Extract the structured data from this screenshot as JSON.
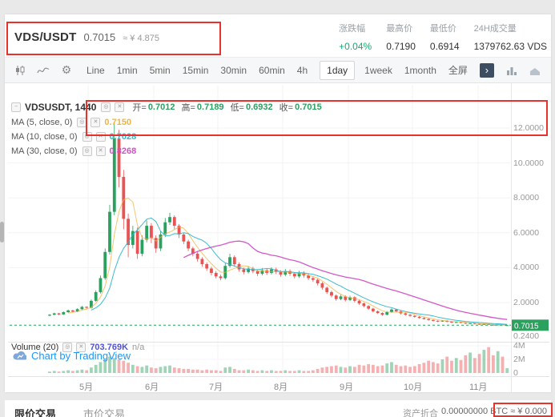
{
  "header": {
    "pair": "VDS/USDT",
    "price": "0.7015",
    "approx": "≈ ¥ 4.875",
    "stats": [
      {
        "label": "涨跌幅",
        "value": "+0.04%",
        "color": "#0fae6d"
      },
      {
        "label": "最高价",
        "value": "0.7190",
        "color": "#333333"
      },
      {
        "label": "最低价",
        "value": "0.6914",
        "color": "#333333"
      },
      {
        "label": "24H成交量",
        "value": "1379762.63 VDS",
        "color": "#333333"
      }
    ]
  },
  "toolbar": {
    "intervals": [
      "Line",
      "1min",
      "5min",
      "15min",
      "30min",
      "60min",
      "4h",
      "1day",
      "1week",
      "1month",
      "全屏"
    ],
    "active_interval": "1day"
  },
  "icons": {
    "collapse": "−",
    "toggle_a": "◎",
    "toggle_b": "✕",
    "gear": "⚙",
    "chevron": "›"
  },
  "legend": {
    "symbol": "VDSUSDT, 1440",
    "ohlc_color": "#2ba05f",
    "ohlc": [
      {
        "label": "开=",
        "value": "0.7012"
      },
      {
        "label": "高=",
        "value": "0.7189"
      },
      {
        "label": "低=",
        "value": "0.6932"
      },
      {
        "label": "收=",
        "value": "0.7015"
      }
    ],
    "ma": [
      {
        "label": "MA (5, close, 0)",
        "value": "0.7150",
        "color": "#f2b33d"
      },
      {
        "label": "MA (10, close, 0)",
        "value": "0.7028",
        "color": "#31b8cf"
      },
      {
        "label": "MA (30, close, 0)",
        "value": "0.8268",
        "color": "#d14fc6"
      }
    ]
  },
  "volume_legend": {
    "label": "Volume (20)",
    "value": "703.769K",
    "suffix": "n/a",
    "value_color": "#5353d6"
  },
  "watermark": "Chart by TradingView",
  "price_badge": {
    "text": "0.7015",
    "bg": "#2ba05f"
  },
  "axes": {
    "price_ticks": [
      "12.0000",
      "10.0000",
      "8.0000",
      "6.0000",
      "4.0000",
      "2.0000"
    ],
    "price_tick_values": [
      12,
      10,
      8,
      6,
      4,
      2
    ],
    "bottom_tick": "0.2400",
    "volume_ticks": [
      {
        "label": "4M",
        "value": 4
      },
      {
        "label": "2M",
        "value": 2
      },
      {
        "label": "0",
        "value": 0
      }
    ],
    "months": [
      "5月",
      "6月",
      "7月",
      "8月",
      "9月",
      "10月",
      "11月"
    ]
  },
  "bottom": {
    "tabs": [
      {
        "label": "限价交易",
        "active": true
      },
      {
        "label": "市价交易",
        "active": false
      }
    ],
    "right_label": "资产折合",
    "right_value": "0.00000000 BTC ≈ ¥ 0.000"
  },
  "chart_data": {
    "type": "candlestick",
    "symbol": "VDS/USDT",
    "interval": "1day",
    "up_color": "#2ba05f",
    "down_color": "#e95353",
    "ylim": [
      0,
      14.5
    ],
    "volume_ylim_m": [
      0,
      4
    ],
    "current_price": 0.7015,
    "x_labels": [
      "5月",
      "6月",
      "7月",
      "8月",
      "9月",
      "10月",
      "11月"
    ],
    "ma_periods": [
      5,
      10,
      30
    ],
    "candles": [
      [
        1.25,
        1.34,
        1.22,
        1.3
      ],
      [
        1.3,
        1.42,
        1.27,
        1.38
      ],
      [
        1.38,
        1.41,
        1.28,
        1.32
      ],
      [
        1.32,
        1.49,
        1.29,
        1.45
      ],
      [
        1.45,
        1.6,
        1.41,
        1.55
      ],
      [
        1.55,
        1.58,
        1.44,
        1.48
      ],
      [
        1.48,
        1.67,
        1.45,
        1.62
      ],
      [
        1.62,
        1.81,
        1.58,
        1.75
      ],
      [
        1.75,
        1.79,
        1.65,
        1.7
      ],
      [
        1.7,
        2.18,
        1.66,
        2.1
      ],
      [
        2.1,
        2.7,
        2.04,
        2.6
      ],
      [
        2.6,
        3.55,
        2.52,
        3.4
      ],
      [
        3.4,
        5.1,
        3.3,
        4.9
      ],
      [
        4.9,
        7.6,
        4.75,
        7.2
      ],
      [
        7.2,
        12.3,
        7.0,
        11.4
      ],
      [
        11.4,
        11.9,
        8.6,
        9.2
      ],
      [
        9.2,
        9.6,
        6.2,
        6.8
      ],
      [
        6.8,
        7.1,
        4.6,
        5.3
      ],
      [
        5.3,
        6.4,
        5.1,
        6.1
      ],
      [
        6.1,
        6.3,
        4.5,
        4.8
      ],
      [
        4.8,
        5.85,
        4.65,
        5.6
      ],
      [
        5.6,
        6.7,
        5.45,
        6.4
      ],
      [
        6.4,
        6.55,
        5.4,
        5.7
      ],
      [
        5.7,
        5.85,
        4.85,
        5.1
      ],
      [
        5.1,
        6.1,
        4.95,
        5.9
      ],
      [
        5.9,
        6.85,
        5.75,
        6.6
      ],
      [
        6.6,
        7.15,
        6.45,
        6.9
      ],
      [
        6.9,
        7.0,
        6.2,
        6.4
      ],
      [
        6.4,
        6.5,
        5.7,
        5.9
      ],
      [
        5.9,
        6.0,
        5.35,
        5.5
      ],
      [
        5.5,
        5.6,
        4.95,
        5.1
      ],
      [
        5.1,
        5.2,
        4.65,
        4.8
      ],
      [
        4.8,
        4.9,
        4.35,
        4.5
      ],
      [
        4.5,
        4.6,
        4.05,
        4.2
      ],
      [
        4.2,
        4.3,
        3.82,
        3.95
      ],
      [
        3.95,
        4.05,
        3.55,
        3.7
      ],
      [
        3.7,
        3.8,
        3.38,
        3.5
      ],
      [
        3.5,
        3.6,
        3.28,
        3.4
      ],
      [
        3.4,
        4.25,
        3.32,
        4.1
      ],
      [
        4.1,
        4.8,
        4.0,
        4.6
      ],
      [
        4.6,
        4.7,
        4.05,
        4.2
      ],
      [
        4.2,
        4.3,
        3.78,
        3.9
      ],
      [
        3.9,
        4.0,
        3.62,
        3.75
      ],
      [
        3.75,
        4.08,
        3.66,
        3.95
      ],
      [
        3.95,
        4.05,
        3.68,
        3.8
      ],
      [
        3.8,
        3.9,
        3.52,
        3.65
      ],
      [
        3.65,
        3.98,
        3.56,
        3.85
      ],
      [
        3.85,
        3.95,
        3.58,
        3.7
      ],
      [
        3.7,
        4.02,
        3.61,
        3.9
      ],
      [
        3.9,
        4.0,
        3.63,
        3.75
      ],
      [
        3.75,
        3.85,
        3.48,
        3.6
      ],
      [
        3.6,
        3.92,
        3.51,
        3.8
      ],
      [
        3.8,
        3.9,
        3.53,
        3.65
      ],
      [
        3.65,
        3.75,
        3.38,
        3.5
      ],
      [
        3.5,
        3.82,
        3.41,
        3.7
      ],
      [
        3.7,
        3.8,
        3.43,
        3.55
      ],
      [
        3.55,
        3.65,
        3.28,
        3.4
      ],
      [
        3.4,
        3.5,
        3.18,
        3.3
      ],
      [
        3.3,
        3.38,
        2.98,
        3.1
      ],
      [
        3.1,
        3.18,
        2.74,
        2.85
      ],
      [
        2.85,
        2.92,
        2.5,
        2.6
      ],
      [
        2.6,
        2.68,
        2.3,
        2.4
      ],
      [
        2.4,
        2.47,
        2.1,
        2.2
      ],
      [
        2.2,
        2.44,
        2.13,
        2.35
      ],
      [
        2.35,
        2.42,
        2.06,
        2.15
      ],
      [
        2.15,
        2.39,
        2.08,
        2.3
      ],
      [
        2.3,
        2.36,
        2.01,
        2.1
      ],
      [
        2.1,
        2.16,
        1.87,
        1.95
      ],
      [
        1.95,
        2.0,
        1.72,
        1.8
      ],
      [
        1.8,
        1.85,
        1.58,
        1.65
      ],
      [
        1.65,
        1.7,
        1.43,
        1.5
      ],
      [
        1.5,
        1.55,
        1.34,
        1.4
      ],
      [
        1.4,
        1.44,
        1.24,
        1.3
      ],
      [
        1.3,
        1.51,
        1.26,
        1.45
      ],
      [
        1.45,
        1.67,
        1.41,
        1.6
      ],
      [
        1.6,
        1.64,
        1.44,
        1.5
      ],
      [
        1.5,
        1.54,
        1.32,
        1.38
      ],
      [
        1.38,
        1.42,
        1.25,
        1.3
      ],
      [
        1.3,
        1.34,
        1.19,
        1.24
      ],
      [
        1.24,
        1.28,
        1.13,
        1.18
      ],
      [
        1.18,
        1.22,
        1.07,
        1.12
      ],
      [
        1.12,
        1.16,
        1.02,
        1.06
      ],
      [
        1.06,
        1.1,
        0.96,
        1.0
      ],
      [
        1.0,
        1.03,
        0.91,
        0.95
      ],
      [
        0.95,
        0.98,
        0.88,
        0.92
      ],
      [
        0.92,
        0.99,
        0.9,
        0.96
      ],
      [
        0.96,
        0.98,
        0.86,
        0.9
      ],
      [
        0.9,
        0.93,
        0.83,
        0.86
      ],
      [
        0.86,
        0.91,
        0.84,
        0.88
      ],
      [
        0.88,
        0.9,
        0.81,
        0.84
      ],
      [
        0.84,
        0.86,
        0.77,
        0.8
      ],
      [
        0.8,
        0.85,
        0.78,
        0.82
      ],
      [
        0.82,
        0.84,
        0.75,
        0.78
      ],
      [
        0.78,
        0.8,
        0.72,
        0.75
      ],
      [
        0.75,
        0.8,
        0.73,
        0.77
      ],
      [
        0.77,
        0.79,
        0.7,
        0.73
      ],
      [
        0.73,
        0.75,
        0.69,
        0.72
      ],
      [
        0.72,
        0.76,
        0.7,
        0.74
      ],
      [
        0.74,
        0.755,
        0.695,
        0.71
      ],
      [
        0.7012,
        0.7189,
        0.6932,
        0.7015
      ]
    ],
    "volumes_m": [
      0.2,
      0.3,
      0.2,
      0.3,
      0.4,
      0.3,
      0.4,
      0.5,
      0.4,
      0.8,
      1.2,
      1.6,
      2.0,
      2.4,
      2.2,
      2.0,
      1.8,
      1.5,
      1.2,
      1.0,
      0.9,
      1.1,
      0.8,
      0.7,
      0.9,
      1.0,
      1.1,
      0.8,
      0.7,
      0.6,
      0.6,
      0.5,
      0.5,
      0.4,
      0.5,
      0.4,
      0.4,
      0.3,
      0.8,
      0.9,
      0.6,
      0.4,
      0.4,
      0.5,
      0.4,
      0.3,
      0.4,
      0.3,
      0.4,
      0.3,
      0.3,
      0.4,
      0.3,
      0.3,
      0.4,
      0.3,
      0.3,
      0.4,
      0.6,
      0.8,
      0.9,
      1.0,
      1.1,
      0.9,
      0.8,
      1.0,
      0.9,
      1.2,
      1.1,
      1.3,
      1.2,
      1.0,
      1.1,
      1.4,
      1.6,
      1.2,
      1.0,
      1.1,
      0.9,
      1.0,
      1.3,
      1.5,
      1.8,
      1.6,
      1.4,
      2.0,
      2.4,
      1.8,
      2.2,
      1.9,
      2.6,
      3.0,
      2.2,
      2.8,
      3.4,
      3.8,
      2.6,
      3.2,
      2.4,
      0.7
    ]
  }
}
